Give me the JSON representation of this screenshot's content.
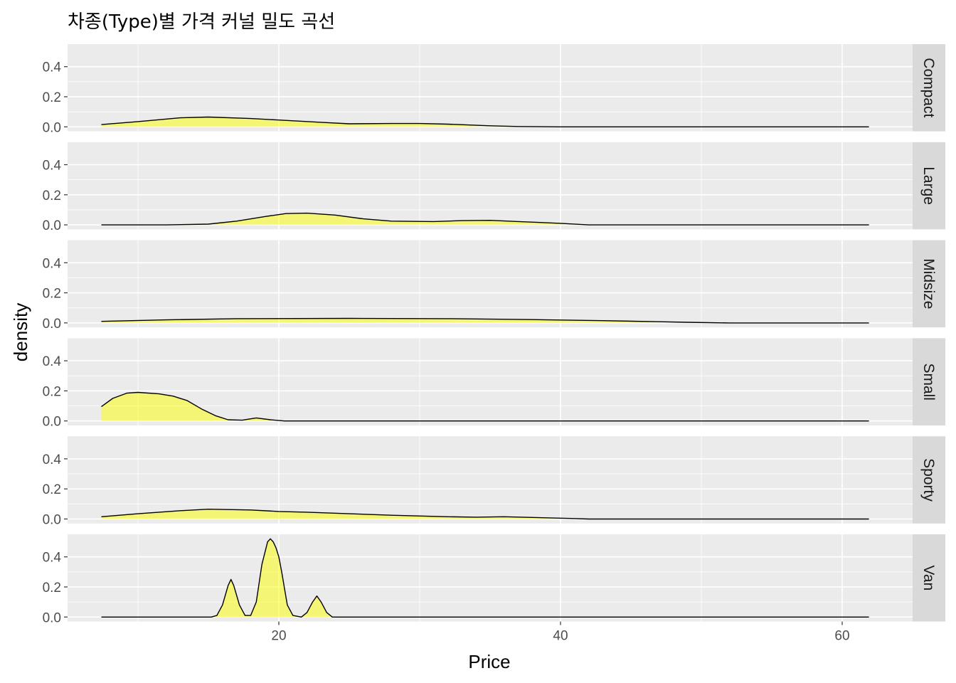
{
  "chart_data": {
    "type": "area",
    "title": "차종(Type)별 가격 커널 밀도 곡선",
    "xlabel": "Price",
    "ylabel": "density",
    "xlim": [
      5.0,
      65.0
    ],
    "ylim": [
      -0.03,
      0.55
    ],
    "x_ticks": [
      20,
      40,
      60
    ],
    "y_ticks": [
      0.0,
      0.2,
      0.4
    ],
    "y_tick_labels": [
      "0.0",
      "0.2",
      "0.4"
    ],
    "grid": true,
    "fill_color": "#ffff00",
    "fill_opacity": 0.5,
    "line_color": "#000000",
    "panel_background": "#ebebeb",
    "strip_background": "#d9d9d9",
    "facets": [
      {
        "name": "Compact",
        "points": [
          [
            7.4,
            0.015
          ],
          [
            10,
            0.035
          ],
          [
            13,
            0.06
          ],
          [
            15,
            0.065
          ],
          [
            18,
            0.055
          ],
          [
            20,
            0.045
          ],
          [
            23,
            0.03
          ],
          [
            25,
            0.02
          ],
          [
            28,
            0.022
          ],
          [
            30,
            0.022
          ],
          [
            32,
            0.018
          ],
          [
            35,
            0.007
          ],
          [
            37,
            0.002
          ],
          [
            40,
            0.0
          ],
          [
            61.9,
            0.0
          ]
        ]
      },
      {
        "name": "Large",
        "points": [
          [
            7.4,
            0.0
          ],
          [
            12,
            0.0
          ],
          [
            15,
            0.005
          ],
          [
            17,
            0.025
          ],
          [
            19,
            0.055
          ],
          [
            20.5,
            0.075
          ],
          [
            22,
            0.078
          ],
          [
            24,
            0.065
          ],
          [
            26,
            0.04
          ],
          [
            28,
            0.025
          ],
          [
            31,
            0.022
          ],
          [
            33,
            0.028
          ],
          [
            35,
            0.03
          ],
          [
            37,
            0.022
          ],
          [
            40,
            0.01
          ],
          [
            42,
            0.0
          ],
          [
            61.9,
            0.0
          ]
        ]
      },
      {
        "name": "Midsize",
        "points": [
          [
            7.4,
            0.01
          ],
          [
            12,
            0.02
          ],
          [
            17,
            0.028
          ],
          [
            25,
            0.03
          ],
          [
            32,
            0.028
          ],
          [
            38,
            0.022
          ],
          [
            43,
            0.015
          ],
          [
            47,
            0.008
          ],
          [
            49,
            0.004
          ],
          [
            52,
            0.0
          ],
          [
            61.9,
            0.0
          ]
        ]
      },
      {
        "name": "Small",
        "points": [
          [
            7.4,
            0.095
          ],
          [
            8.2,
            0.15
          ],
          [
            9.2,
            0.185
          ],
          [
            10,
            0.19
          ],
          [
            11.5,
            0.18
          ],
          [
            12.5,
            0.165
          ],
          [
            13.5,
            0.135
          ],
          [
            14.5,
            0.08
          ],
          [
            15.5,
            0.035
          ],
          [
            16.4,
            0.008
          ],
          [
            17.4,
            0.005
          ],
          [
            18.4,
            0.02
          ],
          [
            19.4,
            0.008
          ],
          [
            20.4,
            0.0
          ],
          [
            61.9,
            0.0
          ]
        ]
      },
      {
        "name": "Sporty",
        "points": [
          [
            7.4,
            0.015
          ],
          [
            10,
            0.035
          ],
          [
            13,
            0.055
          ],
          [
            15,
            0.065
          ],
          [
            18,
            0.06
          ],
          [
            20,
            0.05
          ],
          [
            22,
            0.045
          ],
          [
            25,
            0.035
          ],
          [
            28,
            0.025
          ],
          [
            32,
            0.015
          ],
          [
            34,
            0.012
          ],
          [
            36,
            0.015
          ],
          [
            38,
            0.01
          ],
          [
            41,
            0.003
          ],
          [
            42,
            0.0
          ],
          [
            61.9,
            0.0
          ]
        ]
      },
      {
        "name": "Van",
        "points": [
          [
            7.4,
            0.0
          ],
          [
            15.2,
            0.0
          ],
          [
            15.6,
            0.01
          ],
          [
            16,
            0.08
          ],
          [
            16.4,
            0.21
          ],
          [
            16.6,
            0.25
          ],
          [
            16.8,
            0.21
          ],
          [
            17.2,
            0.08
          ],
          [
            17.6,
            0.01
          ],
          [
            18,
            0.01
          ],
          [
            18.4,
            0.1
          ],
          [
            18.8,
            0.35
          ],
          [
            19.2,
            0.5
          ],
          [
            19.4,
            0.52
          ],
          [
            19.6,
            0.5
          ],
          [
            19.8,
            0.46
          ],
          [
            20,
            0.4
          ],
          [
            20.2,
            0.3
          ],
          [
            20.6,
            0.08
          ],
          [
            21,
            0.01
          ],
          [
            21.6,
            0.0
          ],
          [
            22,
            0.03
          ],
          [
            22.4,
            0.1
          ],
          [
            22.7,
            0.14
          ],
          [
            23,
            0.1
          ],
          [
            23.4,
            0.03
          ],
          [
            23.8,
            0.0
          ],
          [
            61.9,
            0.0
          ]
        ]
      }
    ]
  }
}
